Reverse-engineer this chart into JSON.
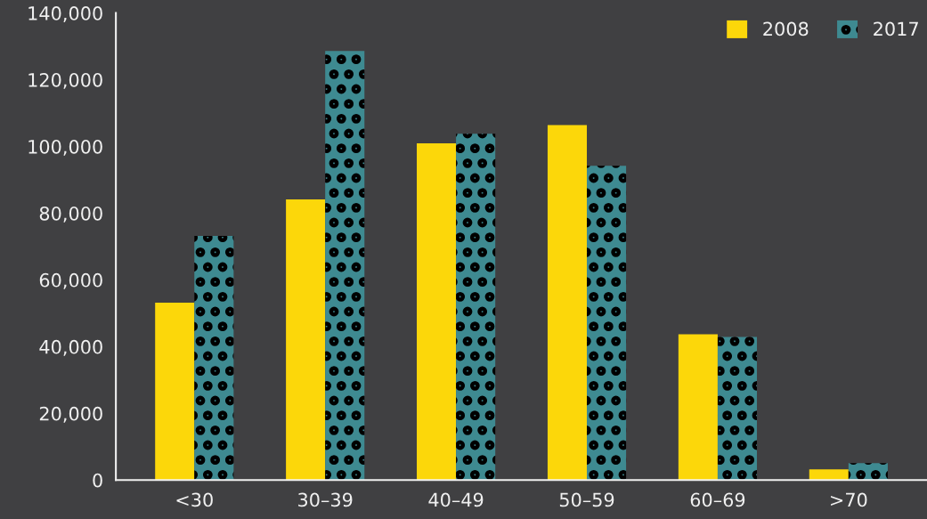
{
  "chart_data": {
    "type": "bar",
    "categories": [
      "<30",
      "30–39",
      "40–49",
      "50–59",
      "60–69",
      ">70"
    ],
    "series": [
      {
        "name": "2008",
        "color": "#fcd70a",
        "values": [
          53200,
          84100,
          100900,
          106400,
          43700,
          3200
        ]
      },
      {
        "name": "2017",
        "color": "#3e8a91",
        "values": [
          73200,
          128600,
          103800,
          94200,
          42900,
          5100
        ]
      }
    ],
    "ylim": [
      0,
      140000
    ],
    "yticks": [
      {
        "value": 0,
        "label": "0"
      },
      {
        "value": 20000,
        "label": "20,000"
      },
      {
        "value": 40000,
        "label": "40,000"
      },
      {
        "value": 60000,
        "label": "60,000"
      },
      {
        "value": 80000,
        "label": "80,000"
      },
      {
        "value": 100000,
        "label": "100,000"
      },
      {
        "value": 120000,
        "label": "120,000"
      },
      {
        "value": 140000,
        "label": "140,000"
      }
    ],
    "grid": false,
    "legend": "top right"
  }
}
